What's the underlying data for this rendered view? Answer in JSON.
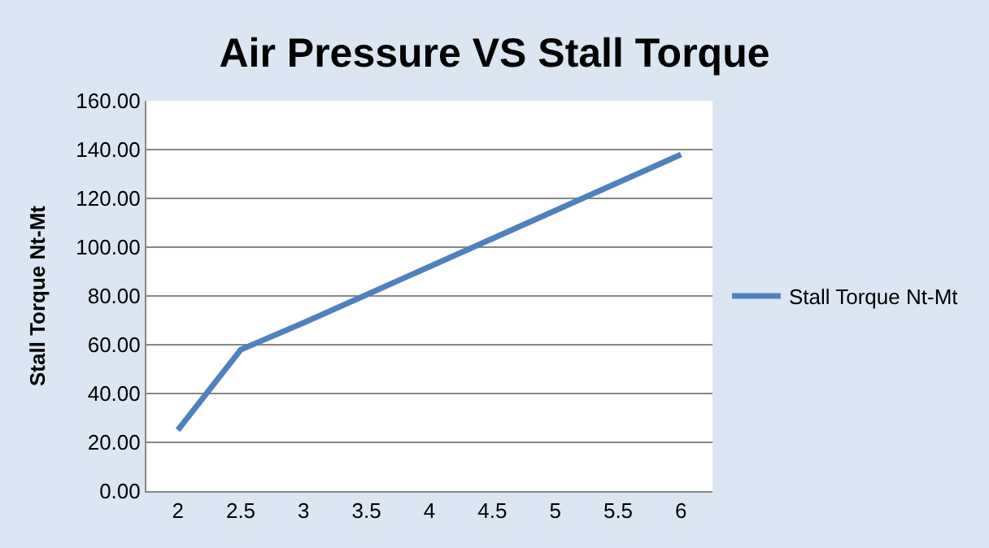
{
  "chart_data": {
    "type": "line",
    "title": "Air Pressure VS Stall Torque",
    "ylabel": "Stall Torque Nt-Mt",
    "categories": [
      "2",
      "2.5",
      "3",
      "3.5",
      "4",
      "4.5",
      "5",
      "5.5",
      "6"
    ],
    "series": [
      {
        "name": "Stall Torque Nt-Mt",
        "color": "#4f81bd",
        "values": [
          25,
          58,
          69,
          80.5,
          92,
          103.5,
          115,
          126.5,
          138
        ]
      }
    ],
    "ylim": [
      0,
      160
    ],
    "yticks": [
      {
        "value": 0,
        "label": "0.00"
      },
      {
        "value": 20,
        "label": "20.00"
      },
      {
        "value": 40,
        "label": "40.00"
      },
      {
        "value": 60,
        "label": "60.00"
      },
      {
        "value": 80,
        "label": "80.00"
      },
      {
        "value": 100,
        "label": "100.00"
      },
      {
        "value": 120,
        "label": "120.00"
      },
      {
        "value": 140,
        "label": "140.00"
      },
      {
        "value": 160,
        "label": "160.00"
      }
    ],
    "grid": "y",
    "legend": "right",
    "marker": "none",
    "line_style": "solid"
  }
}
